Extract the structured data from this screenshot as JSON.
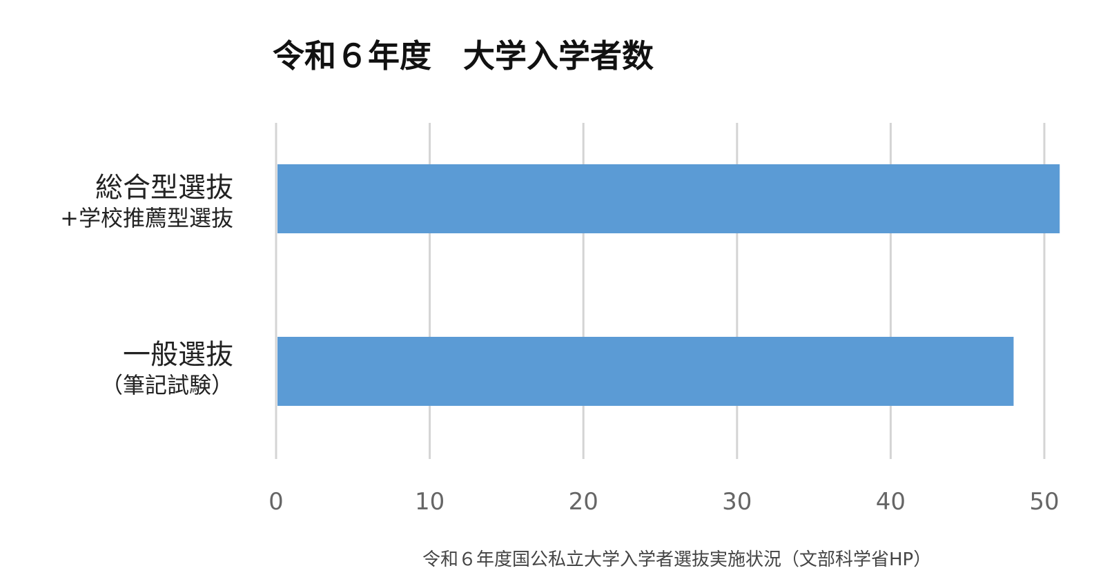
{
  "chart_data": {
    "type": "bar",
    "orientation": "horizontal",
    "title": "令和６年度　大学入学者数",
    "categories": [
      {
        "line1": "総合型選抜",
        "line2": "+学校推薦型選抜"
      },
      {
        "line1": "一般選抜",
        "line2": "（筆記試験）"
      }
    ],
    "values": [
      51,
      48
    ],
    "xlim": [
      0,
      50
    ],
    "xticks": [
      "0",
      "10",
      "20",
      "30",
      "40",
      "50"
    ],
    "grid": true,
    "bar_color": "#5b9bd5",
    "source": "令和６年度国公私立大学入学者選抜実施状況（文部科学省HP）"
  }
}
